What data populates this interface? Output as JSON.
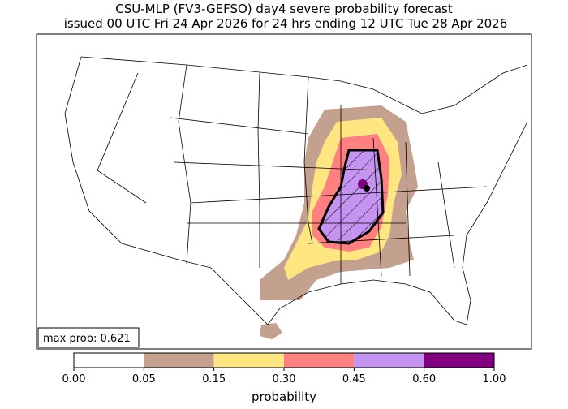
{
  "title": [
    "CSU-MLP (FV3-GEFSO) day4 severe probability forecast",
    "issued 00 UTC Fri 24 Apr 2026 for 24 hrs ending 12 UTC Tue 28 Apr 2026"
  ],
  "annotation": "max prob: 0.621",
  "colorbar": {
    "label": "probability",
    "ticks": [
      {
        "value": 0,
        "label": "0.00"
      },
      {
        "value": 0.05,
        "label": "0.05"
      },
      {
        "value": 0.15,
        "label": "0.15"
      },
      {
        "value": 0.3,
        "label": "0.30"
      },
      {
        "value": 0.45,
        "label": "0.45"
      },
      {
        "value": 0.6,
        "label": "0.60"
      },
      {
        "value": 1,
        "label": "1.00"
      }
    ],
    "colors": [
      "#ffffff",
      "#c4a08e",
      "#ffe680",
      "#ff8080",
      "#c494f0",
      "#800080"
    ]
  }
}
